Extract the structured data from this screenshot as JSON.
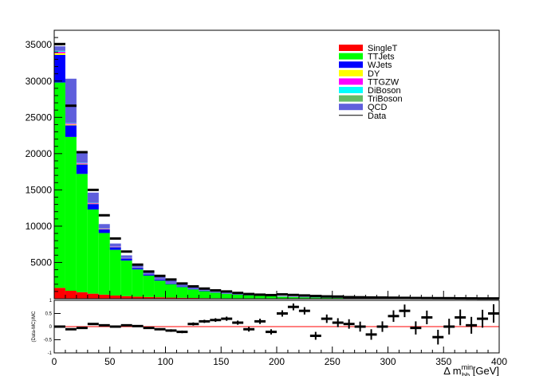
{
  "chart_data": [
    {
      "type": "bar",
      "stacked": true,
      "panel": "main",
      "xlabel": "Δ m_{bb}^{min} [GeV]",
      "ylabel": "",
      "xlim": [
        0,
        400
      ],
      "ylim": [
        0,
        37000
      ],
      "bin_width": 10,
      "x_ticks": [
        "0",
        "50",
        "100",
        "150",
        "200",
        "250",
        "300",
        "350",
        "400"
      ],
      "y_ticks": [
        "5000",
        "10000",
        "15000",
        "20000",
        "25000",
        "30000",
        "35000"
      ],
      "bin_edges_start": [
        0,
        10,
        20,
        30,
        40,
        50,
        60,
        70,
        80,
        90,
        100,
        110,
        120,
        130,
        140,
        150,
        160,
        170,
        180,
        190,
        200,
        210,
        220,
        230,
        240,
        250,
        260,
        270,
        280,
        290,
        300,
        310,
        320,
        330,
        340,
        350,
        360,
        370,
        380,
        390
      ],
      "legend_position": "top-right",
      "series": [
        {
          "name": "SingleT",
          "color": "#ff0000",
          "values": [
            1500,
            1100,
            900,
            700,
            560,
            440,
            360,
            290,
            240,
            200,
            160,
            130,
            110,
            90,
            75,
            60,
            50,
            42,
            35,
            30,
            25,
            22,
            18,
            16,
            14,
            12,
            10,
            9,
            8,
            7,
            6,
            5,
            5,
            4,
            4,
            3,
            3,
            3,
            2,
            2
          ]
        },
        {
          "name": "TTJets",
          "color": "#00ff00",
          "values": [
            28300,
            21200,
            16300,
            11600,
            8500,
            6300,
            4900,
            3750,
            2950,
            2300,
            1850,
            1480,
            1180,
            950,
            770,
            630,
            520,
            430,
            360,
            300,
            250,
            210,
            180,
            150,
            130,
            110,
            95,
            82,
            71,
            62,
            54,
            47,
            41,
            36,
            32,
            28,
            25,
            22,
            20,
            18
          ]
        },
        {
          "name": "WJets",
          "color": "#0000ff",
          "values": [
            3800,
            1600,
            1300,
            750,
            500,
            370,
            290,
            220,
            180,
            140,
            115,
            95,
            78,
            64,
            53,
            44,
            37,
            31,
            26,
            22,
            19,
            16,
            14,
            12,
            10,
            9,
            8,
            7,
            6,
            5,
            5,
            4,
            4,
            3,
            3,
            3,
            2,
            2,
            2,
            2
          ]
        },
        {
          "name": "DY",
          "color": "#ffff00",
          "values": [
            250,
            120,
            90,
            60,
            45,
            35,
            28,
            22,
            18,
            15,
            12,
            10,
            8,
            7,
            6,
            5,
            4,
            4,
            3,
            3,
            2,
            2,
            2,
            2,
            1,
            1,
            1,
            1,
            1,
            1,
            1,
            1,
            1,
            1,
            1,
            1,
            1,
            1,
            1,
            1
          ]
        },
        {
          "name": "TTGZW",
          "color": "#ff00ff",
          "values": [
            200,
            120,
            90,
            70,
            50,
            40,
            32,
            26,
            21,
            17,
            14,
            11,
            9,
            8,
            7,
            6,
            5,
            4,
            4,
            3,
            3,
            2,
            2,
            2,
            2,
            1,
            1,
            1,
            1,
            1,
            1,
            1,
            1,
            1,
            1,
            1,
            1,
            1,
            1,
            1
          ]
        },
        {
          "name": "DiBoson",
          "color": "#00ffff",
          "values": [
            100,
            60,
            45,
            33,
            25,
            20,
            16,
            13,
            10,
            8,
            7,
            6,
            5,
            4,
            3,
            3,
            2,
            2,
            2,
            2,
            1,
            1,
            1,
            1,
            1,
            1,
            1,
            1,
            1,
            1,
            1,
            1,
            1,
            1,
            1,
            1,
            1,
            1,
            1,
            1
          ]
        },
        {
          "name": "TriBoson",
          "color": "#66bb66",
          "values": [
            40,
            25,
            18,
            13,
            10,
            8,
            6,
            5,
            4,
            3,
            3,
            2,
            2,
            2,
            1,
            1,
            1,
            1,
            1,
            1,
            1,
            1,
            1,
            1,
            1,
            1,
            1,
            1,
            1,
            1,
            1,
            1,
            1,
            1,
            1,
            1,
            1,
            1,
            1,
            1
          ]
        },
        {
          "name": "QCD",
          "color": "#5f5fdc",
          "values": [
            600,
            6100,
            1400,
            1400,
            600,
            400,
            350,
            300,
            300,
            400,
            400,
            300,
            250,
            150,
            120,
            100,
            90,
            80,
            70,
            60,
            50,
            45,
            40,
            35,
            30,
            25,
            22,
            20,
            18,
            16,
            14,
            12,
            11,
            10,
            9,
            8,
            7,
            6,
            6,
            5
          ]
        }
      ],
      "data": {
        "name": "Data",
        "color": "#000000",
        "values": [
          35100,
          26600,
          20200,
          15000,
          11500,
          8300,
          6500,
          4700,
          3750,
          3150,
          2650,
          2100,
          1700,
          1400,
          1150,
          1000,
          800,
          650,
          560,
          500,
          600,
          520,
          450,
          380,
          320,
          300,
          220,
          200,
          170,
          160,
          140,
          120,
          100,
          90,
          80,
          75,
          60,
          50,
          40,
          40
        ]
      }
    },
    {
      "type": "scatter",
      "panel": "ratio",
      "ylabel": "(Data-MC)/MC",
      "xlabel": "Δ m_{bb}^{min} [GeV]",
      "xlim": [
        0,
        400
      ],
      "ylim": [
        -1,
        1
      ],
      "reference_line": 0,
      "y_ticks": [
        "-1",
        "-0.5",
        "0",
        "0.5",
        "1"
      ],
      "x": [
        5,
        15,
        25,
        35,
        45,
        55,
        65,
        75,
        85,
        95,
        105,
        115,
        125,
        135,
        145,
        155,
        165,
        175,
        185,
        195,
        205,
        215,
        225,
        235,
        245,
        255,
        265,
        275,
        285,
        295,
        305,
        315,
        325,
        335,
        345,
        355,
        365,
        375,
        385,
        395
      ],
      "values": [
        0.0,
        -0.1,
        -0.05,
        0.1,
        0.05,
        0.0,
        0.05,
        0.02,
        -0.05,
        -0.1,
        -0.15,
        -0.2,
        0.1,
        0.2,
        0.25,
        0.3,
        0.15,
        -0.1,
        0.2,
        -0.2,
        0.5,
        0.75,
        0.6,
        -0.35,
        0.3,
        0.15,
        0.1,
        0.0,
        -0.3,
        0.0,
        0.4,
        0.6,
        -0.05,
        0.35,
        -0.4,
        0.0,
        0.35,
        0.05,
        0.3,
        0.5
      ],
      "errors": [
        0.01,
        0.015,
        0.02,
        0.02,
        0.02,
        0.02,
        0.03,
        0.03,
        0.04,
        0.04,
        0.05,
        0.05,
        0.06,
        0.06,
        0.07,
        0.08,
        0.08,
        0.09,
        0.1,
        0.1,
        0.12,
        0.13,
        0.14,
        0.15,
        0.16,
        0.17,
        0.18,
        0.19,
        0.2,
        0.2,
        0.22,
        0.24,
        0.25,
        0.26,
        0.28,
        0.3,
        0.3,
        0.32,
        0.34,
        0.35
      ]
    }
  ]
}
